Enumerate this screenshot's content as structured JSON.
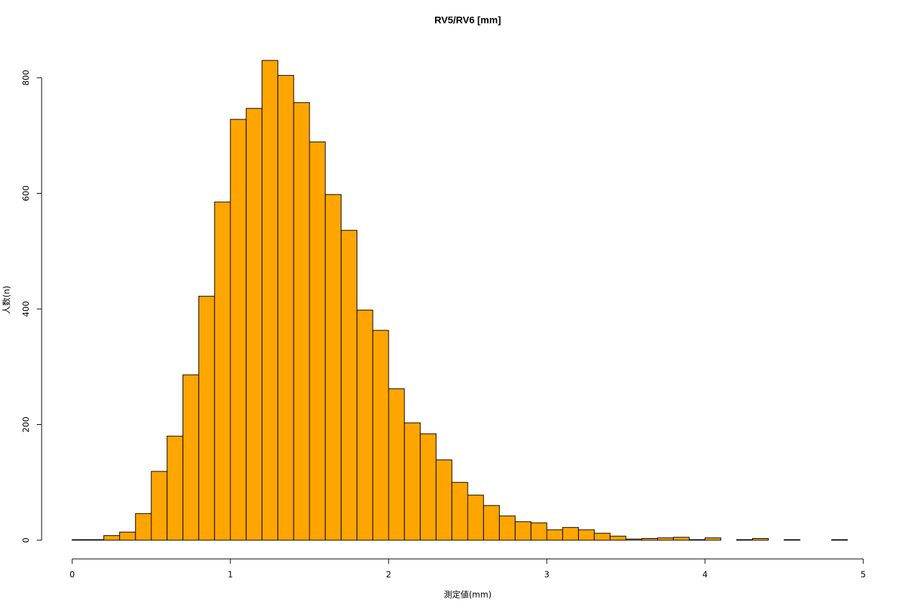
{
  "chart_data": {
    "type": "histogram",
    "title": "RV5/RV6 [mm]",
    "x_label": "測定値(mm)",
    "y_label": "人数(n)",
    "color": "#FFA500",
    "bins": [
      0,
      0.1,
      0.2,
      0.3,
      0.4,
      0.5,
      0.6,
      0.7,
      0.8,
      0.9,
      1.0,
      1.1,
      1.2,
      1.3,
      1.4,
      1.5,
      1.6,
      1.7,
      1.8,
      1.9,
      2.0,
      2.1,
      2.2,
      2.3,
      2.4,
      2.5,
      2.6,
      2.7,
      2.8,
      2.9,
      3.0,
      3.1,
      3.2,
      3.3,
      3.4,
      3.5,
      3.6,
      3.7,
      3.8,
      3.9,
      4.0,
      4.1,
      4.2,
      4.3,
      4.4,
      4.5,
      4.6,
      4.7,
      4.8,
      4.9
    ],
    "values": [
      1,
      1,
      8,
      14,
      46,
      119,
      180,
      286,
      422,
      585,
      728,
      747,
      830,
      804,
      757,
      689,
      598,
      536,
      398,
      363,
      262,
      203,
      184,
      139,
      100,
      78,
      60,
      42,
      32,
      30,
      18,
      22,
      18,
      12,
      7,
      2,
      3,
      4,
      5,
      1,
      4,
      0,
      1,
      3,
      0,
      1,
      0,
      0,
      1
    ],
    "xlim": [
      0,
      5
    ],
    "xticks": [
      0,
      1,
      2,
      3,
      4,
      5
    ],
    "ylim": [
      0,
      830
    ],
    "yticks": [
      0,
      200,
      400,
      600,
      800
    ]
  }
}
